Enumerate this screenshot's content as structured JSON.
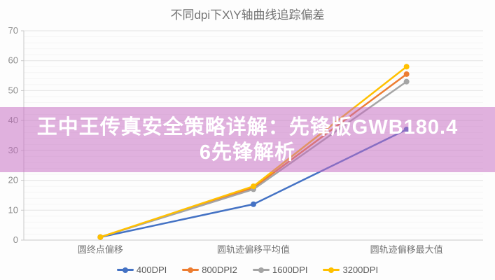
{
  "chart_data": {
    "type": "line",
    "title": "不同dpi下X\\Y轴曲线追踪偏差",
    "categories": [
      "圆终点偏移",
      "圆轨迹偏移平均值",
      "圆轨迹偏移最大值"
    ],
    "series": [
      {
        "name": "400DPI",
        "color": "#4472c4",
        "values": [
          1,
          12,
          37
        ]
      },
      {
        "name": "800DPI2",
        "color": "#ed7d31",
        "values": [
          1,
          17.5,
          55.5
        ]
      },
      {
        "name": "1600DPI",
        "color": "#a5a5a5",
        "values": [
          1,
          17,
          53
        ]
      },
      {
        "name": "3200DPI",
        "color": "#ffc000",
        "values": [
          1,
          18,
          58
        ]
      }
    ],
    "xlabel": "",
    "ylabel": "",
    "ylim": [
      0,
      70
    ],
    "y_major_step": 10,
    "y_minor_step": 2,
    "grid": true,
    "legend_position": "bottom"
  },
  "overlay": {
    "line1": "王中王传真安全策略详解：先锋版GWB180.4",
    "line2": "6先锋解析",
    "background": "#c66cc1",
    "background_rgba": "rgba(198,108,193,0.52)",
    "text_color": "#ffffff"
  }
}
